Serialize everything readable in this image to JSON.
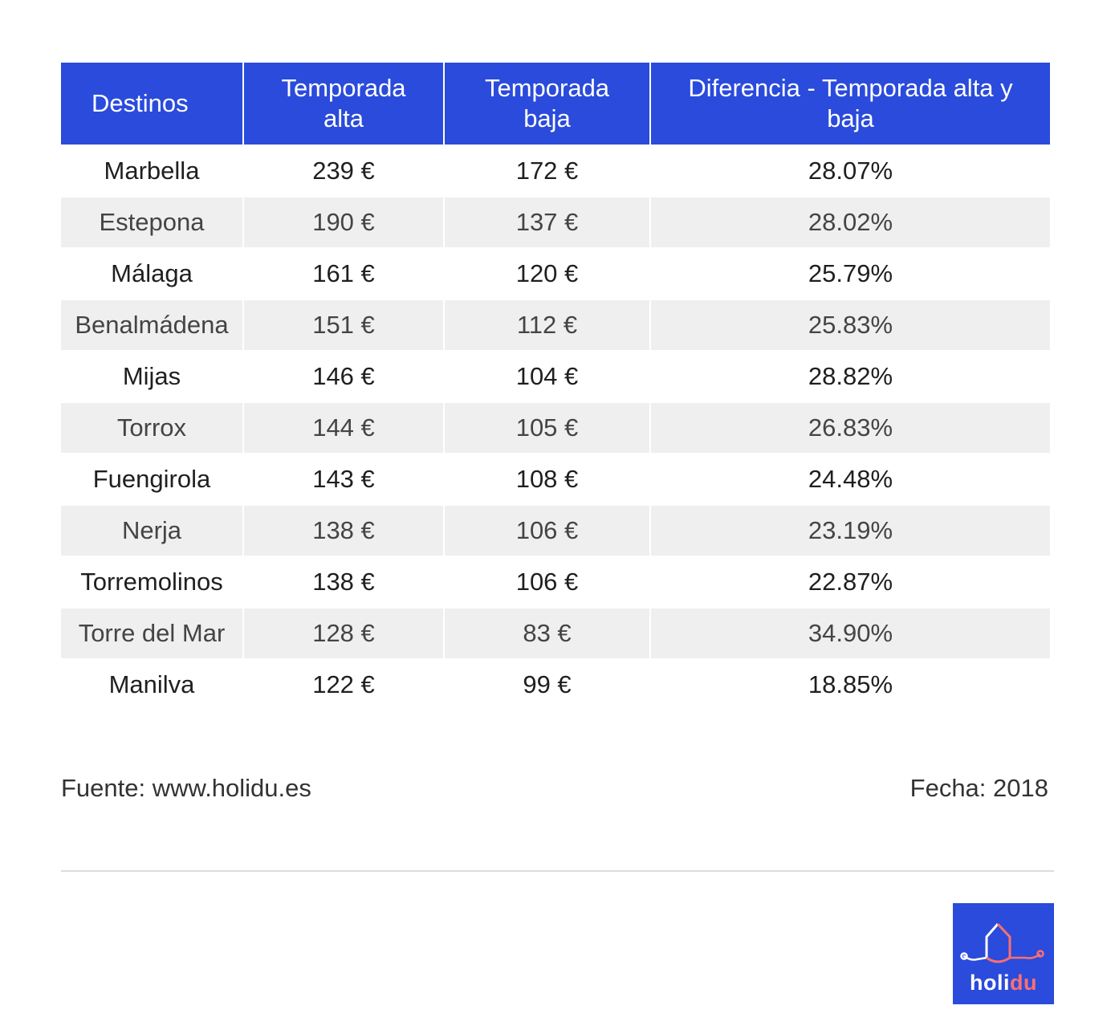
{
  "table": {
    "headers": [
      "Destinos",
      "Temporada\nalta",
      "Temporada\nbaja",
      "Diferencia  - Temporada alta y\nbaja"
    ],
    "rows": [
      {
        "destino": "Marbella",
        "alta": "239 €",
        "baja": "172 €",
        "diferencia": "28.07%"
      },
      {
        "destino": "Estepona",
        "alta": "190 €",
        "baja": "137 €",
        "diferencia": "28.02%"
      },
      {
        "destino": "Málaga",
        "alta": "161 €",
        "baja": "120 €",
        "diferencia": "25.79%"
      },
      {
        "destino": "Benalmádena",
        "alta": "151 €",
        "baja": "112 €",
        "diferencia": "25.83%"
      },
      {
        "destino": "Mijas",
        "alta": "146 €",
        "baja": "104 €",
        "diferencia": "28.82%"
      },
      {
        "destino": "Torrox",
        "alta": "144 €",
        "baja": "105 €",
        "diferencia": "26.83%"
      },
      {
        "destino": "Fuengirola",
        "alta": "143 €",
        "baja": "108 €",
        "diferencia": "24.48%"
      },
      {
        "destino": "Nerja",
        "alta": "138 €",
        "baja": "106 €",
        "diferencia": "23.19%"
      },
      {
        "destino": "Torremolinos",
        "alta": "138 €",
        "baja": "106 €",
        "diferencia": "22.87%"
      },
      {
        "destino": "Torre del Mar",
        "alta": "128 €",
        "baja": "83 €",
        "diferencia": "34.90%"
      },
      {
        "destino": "Manilva",
        "alta": "122 €",
        "baja": "99 €",
        "diferencia": "18.85%"
      }
    ]
  },
  "footer": {
    "source": "Fuente: www.holidu.es",
    "date": "Fecha: 2018"
  },
  "logo": {
    "text_part1": "holi",
    "text_part2": "du",
    "icon": "holidu-house-icon"
  },
  "colors": {
    "header_bg": "#2a4bdb",
    "alt_row_bg": "#efefef",
    "logo_accent": "#ff6f6f"
  }
}
